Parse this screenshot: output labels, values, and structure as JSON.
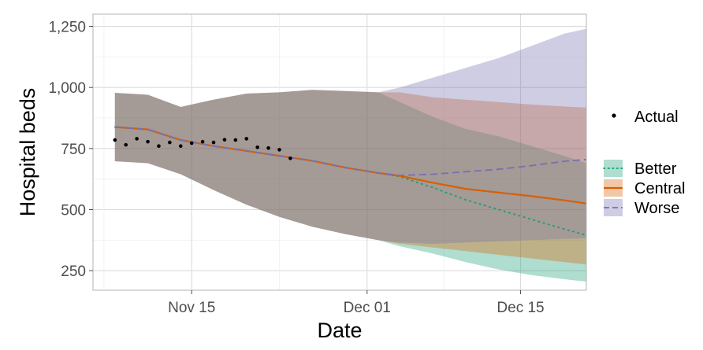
{
  "chart_data": {
    "type": "line",
    "xlabel": "Date",
    "ylabel": "Hospital beds",
    "x_range": [
      "2020-11-06",
      "2020-12-21"
    ],
    "ylim": [
      170,
      1300
    ],
    "grid": true,
    "legend_position": "right",
    "x_ticks": [
      {
        "date": "2020-11-15",
        "label": "Nov 15"
      },
      {
        "date": "2020-12-01",
        "label": "Dec 01"
      },
      {
        "date": "2020-12-15",
        "label": "Dec 15"
      }
    ],
    "y_ticks": [
      {
        "value": 250,
        "label": "250"
      },
      {
        "value": 500,
        "label": "500"
      },
      {
        "value": 750,
        "label": "750"
      },
      {
        "value": 1000,
        "label": "1,000"
      },
      {
        "value": 1250,
        "label": "1,250"
      }
    ],
    "actual": {
      "name": "Actual",
      "color": "#000000",
      "points": [
        {
          "date": "2020-11-08",
          "value": 785
        },
        {
          "date": "2020-11-09",
          "value": 765
        },
        {
          "date": "2020-11-10",
          "value": 790
        },
        {
          "date": "2020-11-11",
          "value": 778
        },
        {
          "date": "2020-11-12",
          "value": 760
        },
        {
          "date": "2020-11-13",
          "value": 775
        },
        {
          "date": "2020-11-14",
          "value": 760
        },
        {
          "date": "2020-11-15",
          "value": 772
        },
        {
          "date": "2020-11-16",
          "value": 778
        },
        {
          "date": "2020-11-17",
          "value": 775
        },
        {
          "date": "2020-11-18",
          "value": 786
        },
        {
          "date": "2020-11-19",
          "value": 785
        },
        {
          "date": "2020-11-20",
          "value": 790
        },
        {
          "date": "2020-11-21",
          "value": 755
        },
        {
          "date": "2020-11-22",
          "value": 752
        },
        {
          "date": "2020-11-23",
          "value": 745
        },
        {
          "date": "2020-11-24",
          "value": 710
        }
      ]
    },
    "series": [
      {
        "name": "Better",
        "color": "#1b9e77",
        "dash": "dotted",
        "x": [
          "2020-11-08",
          "2020-11-11",
          "2020-11-14",
          "2020-11-17",
          "2020-11-20",
          "2020-11-23",
          "2020-11-26",
          "2020-11-29",
          "2020-12-02",
          "2020-12-04",
          "2020-12-07",
          "2020-12-10",
          "2020-12-13",
          "2020-12-16",
          "2020-12-19",
          "2020-12-21"
        ],
        "values": [
          838,
          828,
          785,
          760,
          740,
          720,
          700,
          672,
          650,
          635,
          590,
          540,
          500,
          460,
          420,
          395
        ],
        "lower": [
          698,
          690,
          645,
          580,
          520,
          470,
          430,
          400,
          375,
          350,
          320,
          285,
          255,
          232,
          215,
          205
        ],
        "upper": [
          978,
          970,
          920,
          950,
          975,
          980,
          990,
          985,
          980,
          940,
          880,
          830,
          800,
          760,
          720,
          690
        ]
      },
      {
        "name": "Central",
        "color": "#d95f02",
        "dash": "solid",
        "x": [
          "2020-11-08",
          "2020-11-11",
          "2020-11-14",
          "2020-11-17",
          "2020-11-20",
          "2020-11-23",
          "2020-11-26",
          "2020-11-29",
          "2020-12-02",
          "2020-12-04",
          "2020-12-07",
          "2020-12-10",
          "2020-12-13",
          "2020-12-16",
          "2020-12-19",
          "2020-12-21"
        ],
        "values": [
          838,
          828,
          785,
          760,
          740,
          720,
          700,
          672,
          650,
          638,
          610,
          585,
          570,
          555,
          538,
          525
        ],
        "lower": [
          698,
          690,
          645,
          580,
          520,
          470,
          430,
          400,
          375,
          360,
          345,
          330,
          315,
          300,
          285,
          275
        ],
        "upper": [
          978,
          970,
          920,
          950,
          975,
          980,
          990,
          985,
          980,
          980,
          960,
          950,
          940,
          930,
          922,
          918
        ]
      },
      {
        "name": "Worse",
        "color": "#7570b3",
        "dash": "dashed",
        "x": [
          "2020-11-08",
          "2020-11-11",
          "2020-11-14",
          "2020-11-17",
          "2020-11-20",
          "2020-11-23",
          "2020-11-26",
          "2020-11-29",
          "2020-12-02",
          "2020-12-04",
          "2020-12-07",
          "2020-12-10",
          "2020-12-13",
          "2020-12-16",
          "2020-12-19",
          "2020-12-21"
        ],
        "values": [
          838,
          828,
          785,
          760,
          740,
          720,
          700,
          672,
          650,
          640,
          645,
          655,
          665,
          680,
          698,
          705
        ],
        "lower": [
          698,
          690,
          645,
          580,
          520,
          470,
          430,
          400,
          375,
          365,
          360,
          365,
          370,
          375,
          380,
          382
        ],
        "upper": [
          978,
          970,
          920,
          950,
          975,
          980,
          990,
          985,
          980,
          1000,
          1040,
          1080,
          1120,
          1170,
          1220,
          1240
        ]
      }
    ]
  }
}
